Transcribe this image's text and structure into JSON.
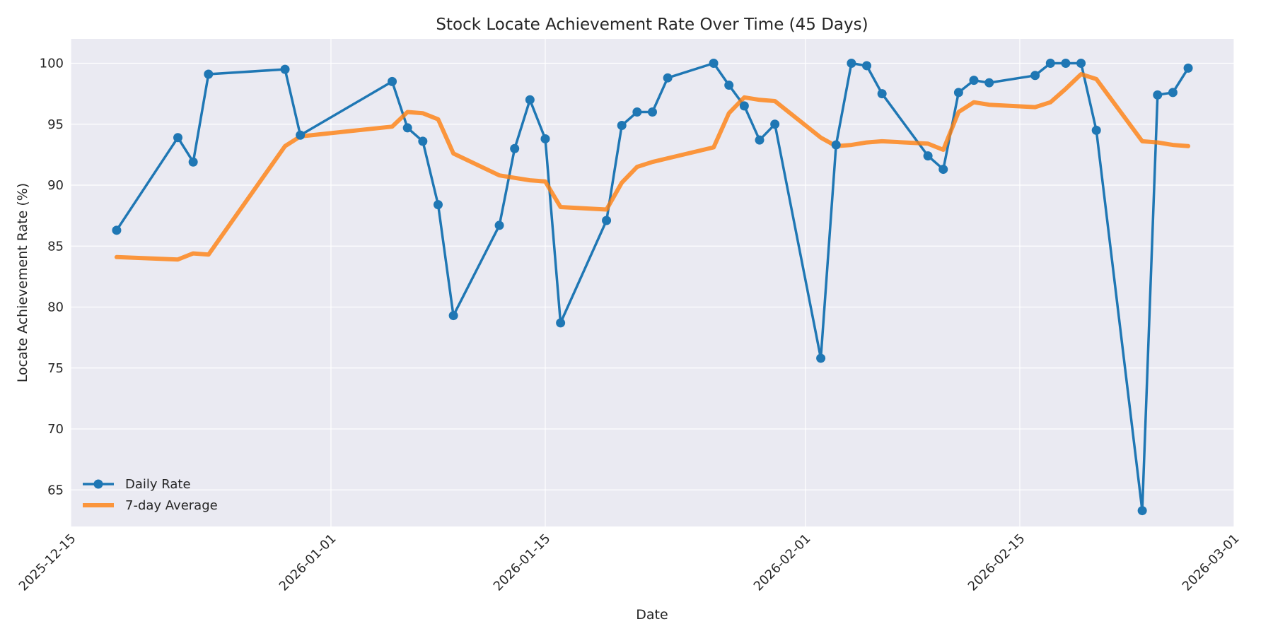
{
  "chart_data": {
    "type": "line",
    "title": "Stock Locate Achievement Rate Over Time (45 Days)",
    "xlabel": "Date",
    "ylabel": "Locate Achievement Rate (%)",
    "xlim": [
      "2025-12-15",
      "2026-03-01"
    ],
    "ylim": [
      62,
      102
    ],
    "x_ticks": [
      "2025-12-15",
      "2026-01-01",
      "2026-01-15",
      "2026-02-01",
      "2026-02-15",
      "2026-03-01"
    ],
    "y_ticks": [
      65,
      70,
      75,
      80,
      85,
      90,
      95,
      100
    ],
    "grid": true,
    "legend_position": "lower-left",
    "x": [
      "2025-12-18",
      "2025-12-22",
      "2025-12-23",
      "2025-12-24",
      "2025-12-29",
      "2025-12-30",
      "2026-01-05",
      "2026-01-06",
      "2026-01-07",
      "2026-01-08",
      "2026-01-09",
      "2026-01-12",
      "2026-01-13",
      "2026-01-14",
      "2026-01-15",
      "2026-01-16",
      "2026-01-19",
      "2026-01-20",
      "2026-01-21",
      "2026-01-22",
      "2026-01-23",
      "2026-01-26",
      "2026-01-27",
      "2026-01-28",
      "2026-01-29",
      "2026-01-30",
      "2026-02-02",
      "2026-02-03",
      "2026-02-04",
      "2026-02-05",
      "2026-02-06",
      "2026-02-09",
      "2026-02-10",
      "2026-02-11",
      "2026-02-12",
      "2026-02-13",
      "2026-02-16",
      "2026-02-17",
      "2026-02-18",
      "2026-02-19",
      "2026-02-20",
      "2026-02-23",
      "2026-02-24",
      "2026-02-25",
      "2026-02-26"
    ],
    "series": [
      {
        "name": "Daily Rate",
        "color": "#1f77b4",
        "values": [
          86.3,
          93.9,
          91.9,
          99.1,
          99.5,
          94.1,
          98.5,
          94.7,
          93.6,
          88.4,
          79.3,
          86.7,
          93.0,
          97.0,
          93.8,
          78.7,
          87.1,
          94.9,
          96.0,
          96.0,
          98.8,
          100.0,
          98.2,
          96.5,
          93.7,
          95.0,
          75.8,
          93.3,
          100.0,
          99.8,
          97.5,
          92.4,
          91.3,
          97.6,
          98.6,
          98.4,
          99.0,
          100.0,
          100.0,
          100.0,
          94.5,
          63.3,
          97.4,
          97.6,
          99.6
        ]
      },
      {
        "name": "7-day Average",
        "color": "#ff7f0e",
        "values": [
          84.1,
          83.9,
          84.4,
          84.3,
          93.2,
          94.0,
          94.8,
          96.0,
          95.9,
          95.4,
          92.6,
          90.8,
          90.6,
          90.4,
          90.3,
          88.2,
          88.0,
          90.2,
          91.5,
          91.9,
          92.2,
          93.1,
          95.9,
          97.2,
          97.0,
          96.9,
          93.9,
          93.2,
          93.3,
          93.5,
          93.6,
          93.4,
          92.9,
          96.0,
          96.8,
          96.6,
          96.4,
          96.8,
          97.9,
          99.1,
          98.7,
          93.6,
          93.5,
          93.3,
          93.2
        ]
      }
    ]
  }
}
